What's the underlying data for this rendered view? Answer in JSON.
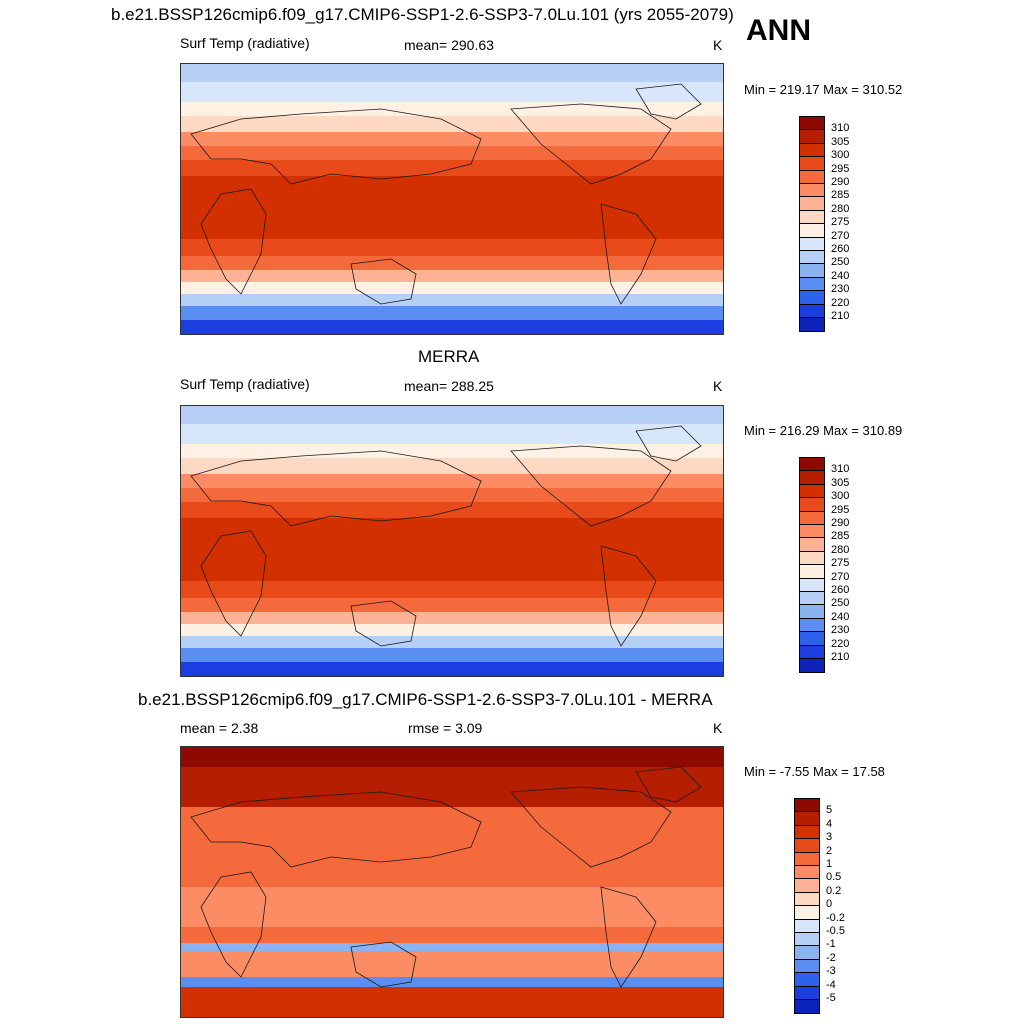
{
  "season": "ANN",
  "panels": [
    {
      "id": "model",
      "title": "b.e21.BSSP126cmip6.f09_g17.CMIP6-SSP1-2.6-SSP3-7.0Lu.101 (yrs 2055-2079)",
      "left_label": "Surf Temp (radiative)",
      "center_label": "mean= 290.63",
      "units": "K",
      "minmax": "Min = 219.17 Max = 310.52",
      "levels": [
        "310",
        "305",
        "300",
        "295",
        "290",
        "285",
        "280",
        "275",
        "270",
        "260",
        "250",
        "240",
        "230",
        "220",
        "210"
      ],
      "colors": [
        "#8e0a00",
        "#b51e00",
        "#d33000",
        "#e84a1a",
        "#f56a3c",
        "#fb8c64",
        "#fdb295",
        "#fdd8c2",
        "#fdf1e4",
        "#d7e6f8",
        "#b5d0f4",
        "#8ab3f0",
        "#5a8ef0",
        "#2f62ec",
        "#1a3ee0",
        "#0c22b8"
      ],
      "mean": 290.63,
      "min": 219.17,
      "max": 310.52
    },
    {
      "id": "obs",
      "title": "MERRA",
      "left_label": "Surf Temp (radiative)",
      "center_label": "mean= 288.25",
      "units": "K",
      "minmax": "Min = 216.29 Max = 310.89",
      "levels": [
        "310",
        "305",
        "300",
        "295",
        "290",
        "285",
        "280",
        "275",
        "270",
        "260",
        "250",
        "240",
        "230",
        "220",
        "210"
      ],
      "colors": [
        "#8e0a00",
        "#b51e00",
        "#d33000",
        "#e84a1a",
        "#f56a3c",
        "#fb8c64",
        "#fdb295",
        "#fdd8c2",
        "#fdf1e4",
        "#d7e6f8",
        "#b5d0f4",
        "#8ab3f0",
        "#5a8ef0",
        "#2f62ec",
        "#1a3ee0",
        "#0c22b8"
      ],
      "mean": 288.25,
      "min": 216.29,
      "max": 310.89
    },
    {
      "id": "diff",
      "title": "b.e21.BSSP126cmip6.f09_g17.CMIP6-SSP1-2.6-SSP3-7.0Lu.101 - MERRA",
      "left_label": "mean =   2.38",
      "center_label": "rmse =   3.09",
      "units": "K",
      "minmax": "Min =  -7.55 Max =  17.58",
      "levels": [
        "5",
        "4",
        "3",
        "2",
        "1",
        "0.5",
        "0.2",
        "0",
        "-0.2",
        "-0.5",
        "-1",
        "-2",
        "-3",
        "-4",
        "-5"
      ],
      "colors": [
        "#8e0a00",
        "#b51e00",
        "#d33000",
        "#e84a1a",
        "#f56a3c",
        "#fb8c64",
        "#fdb295",
        "#fdd8c2",
        "#fdf1e4",
        "#d7e6f8",
        "#b5d0f4",
        "#8ab3f0",
        "#5a8ef0",
        "#2f62ec",
        "#1a3ee0",
        "#0c22b8"
      ],
      "mean": 2.38,
      "rmse": 3.09,
      "min": -7.55,
      "max": 17.58
    }
  ],
  "chart_data": [
    {
      "type": "heatmap",
      "title": "b.e21.BSSP126cmip6.f09_g17.CMIP6-SSP1-2.6-SSP3-7.0Lu.101 (yrs 2055-2079)",
      "variable": "Surf Temp (radiative)",
      "units": "K",
      "season": "ANN",
      "mean": 290.63,
      "min": 219.17,
      "max": 310.52,
      "contour_levels": [
        210,
        220,
        230,
        240,
        250,
        260,
        270,
        275,
        280,
        285,
        290,
        295,
        300,
        305,
        310
      ]
    },
    {
      "type": "heatmap",
      "title": "MERRA",
      "variable": "Surf Temp (radiative)",
      "units": "K",
      "mean": 288.25,
      "min": 216.29,
      "max": 310.89,
      "contour_levels": [
        210,
        220,
        230,
        240,
        250,
        260,
        270,
        275,
        280,
        285,
        290,
        295,
        300,
        305,
        310
      ]
    },
    {
      "type": "heatmap",
      "title": "b.e21.BSSP126cmip6.f09_g17.CMIP6-SSP1-2.6-SSP3-7.0Lu.101 - MERRA",
      "units": "K",
      "mean": 2.38,
      "rmse": 3.09,
      "min": -7.55,
      "max": 17.58,
      "contour_levels": [
        -5,
        -4,
        -3,
        -2,
        -1,
        -0.5,
        -0.2,
        0,
        0.2,
        0.5,
        1,
        2,
        3,
        4,
        5
      ]
    }
  ]
}
